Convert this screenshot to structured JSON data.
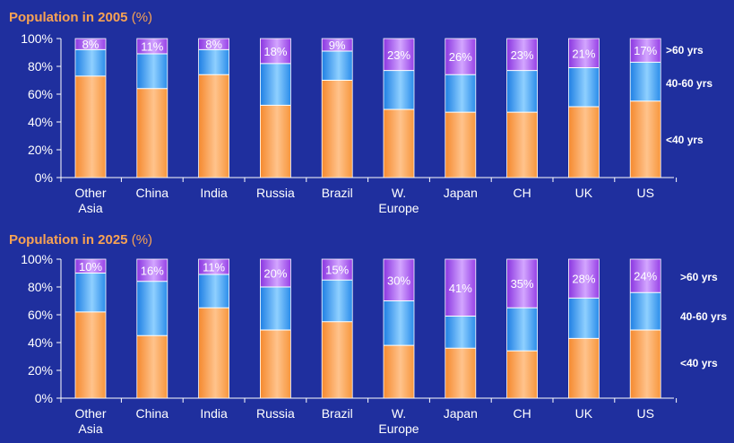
{
  "chart_data": [
    {
      "type": "bar",
      "stacked": true,
      "title": "Population in 2005",
      "title_unit": "(%)",
      "categories": [
        [
          "Other",
          "Asia"
        ],
        [
          "China"
        ],
        [
          "India"
        ],
        [
          "Russia"
        ],
        [
          "Brazil"
        ],
        [
          "W.",
          "Europe"
        ],
        [
          "Japan"
        ],
        [
          "CH"
        ],
        [
          "UK"
        ],
        [
          "US"
        ]
      ],
      "ylim": [
        0,
        100
      ],
      "yticks": [
        "0%",
        "20%",
        "40%",
        "60%",
        "80%",
        "100%"
      ],
      "series": [
        {
          "name": "<40 yrs",
          "values": [
            73,
            64,
            74,
            52,
            70,
            49,
            47,
            47,
            51,
            55
          ],
          "color": "#f99a45"
        },
        {
          "name": "40-60 yrs",
          "values": [
            19,
            25,
            18,
            30,
            21,
            28,
            27,
            30,
            28,
            28
          ],
          "color": "#2e8fea"
        },
        {
          "name": ">60 yrs",
          "values": [
            8,
            11,
            8,
            18,
            9,
            23,
            26,
            23,
            21,
            17
          ],
          "color": "#9b46e6"
        }
      ],
      "bar_labels": [
        "8%",
        "11%",
        "8%",
        "18%",
        "9%",
        "23%",
        "26%",
        "23%",
        "21%",
        "17%"
      ],
      "legend": [
        ">60 yrs",
        "40-60 yrs",
        "<40 yrs"
      ],
      "legend_position": "right"
    },
    {
      "type": "bar",
      "stacked": true,
      "title": "Population in 2025",
      "title_unit": "(%)",
      "categories": [
        [
          "Other",
          "Asia"
        ],
        [
          "China"
        ],
        [
          "India"
        ],
        [
          "Russia"
        ],
        [
          "Brazil"
        ],
        [
          "W.",
          "Europe"
        ],
        [
          "Japan"
        ],
        [
          "CH"
        ],
        [
          "UK"
        ],
        [
          "US"
        ]
      ],
      "ylim": [
        0,
        100
      ],
      "yticks": [
        "0%",
        "20%",
        "40%",
        "60%",
        "80%",
        "100%"
      ],
      "series": [
        {
          "name": "<40 yrs",
          "values": [
            62,
            45,
            65,
            49,
            55,
            38,
            36,
            34,
            43,
            49
          ],
          "color": "#f99a45"
        },
        {
          "name": "40-60 yrs",
          "values": [
            28,
            39,
            24,
            31,
            30,
            32,
            23,
            31,
            29,
            27
          ],
          "color": "#2e8fea"
        },
        {
          "name": ">60 yrs",
          "values": [
            10,
            16,
            11,
            20,
            15,
            30,
            41,
            35,
            28,
            24
          ],
          "color": "#9b46e6"
        }
      ],
      "bar_labels": [
        "10%",
        "16%",
        "11%",
        "20%",
        "15%",
        "30%",
        "41%",
        "35%",
        "28%",
        "24%"
      ],
      "legend": [
        ">60 yrs",
        "40-60 yrs",
        "<40 yrs"
      ],
      "legend_position": "right"
    }
  ],
  "colors": {
    "background": "#1f2f9e",
    "title": "#f7a254",
    "text": "#ffffff",
    "axis": "#ffffff"
  }
}
